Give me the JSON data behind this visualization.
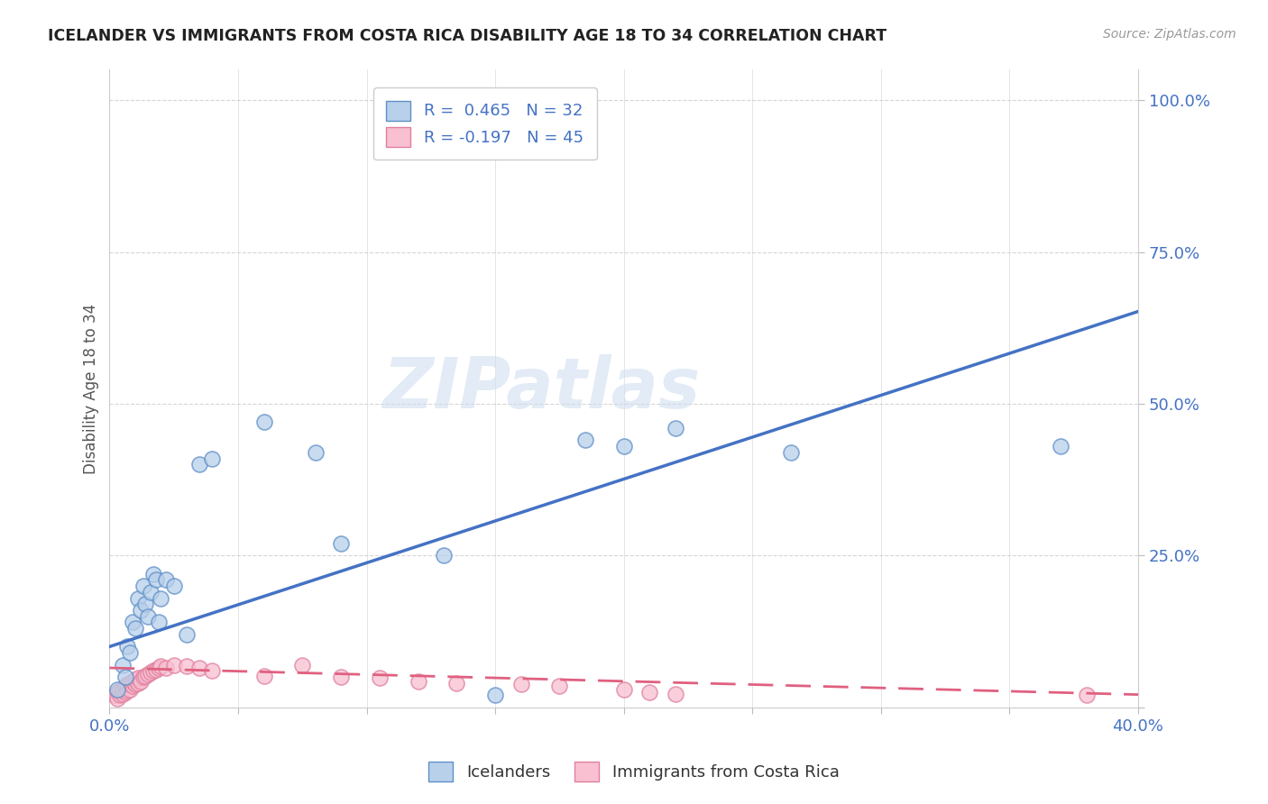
{
  "title": "ICELANDER VS IMMIGRANTS FROM COSTA RICA DISABILITY AGE 18 TO 34 CORRELATION CHART",
  "source": "Source: ZipAtlas.com",
  "ylabel": "Disability Age 18 to 34",
  "xlim": [
    0.0,
    0.4
  ],
  "ylim": [
    0.0,
    1.05
  ],
  "xticks": [
    0.0,
    0.05,
    0.1,
    0.15,
    0.2,
    0.25,
    0.3,
    0.35,
    0.4
  ],
  "xticklabels": [
    "0.0%",
    "",
    "",
    "",
    "",
    "",
    "",
    "",
    "40.0%"
  ],
  "yticks": [
    0.0,
    0.25,
    0.5,
    0.75,
    1.0
  ],
  "yticklabels": [
    "",
    "25.0%",
    "50.0%",
    "75.0%",
    "100.0%"
  ],
  "blue_R": 0.465,
  "blue_N": 32,
  "pink_R": -0.197,
  "pink_N": 45,
  "blue_color": "#b8d0ea",
  "blue_edge_color": "#6090c8",
  "blue_line_color": "#4472c4",
  "pink_color": "#f8c0d0",
  "pink_edge_color": "#e080a0",
  "pink_line_color": "#e06080",
  "watermark_color": "#d0dff0",
  "blue_scatter_x": [
    0.003,
    0.005,
    0.006,
    0.007,
    0.008,
    0.009,
    0.01,
    0.011,
    0.012,
    0.013,
    0.014,
    0.015,
    0.016,
    0.017,
    0.018,
    0.019,
    0.02,
    0.022,
    0.025,
    0.03,
    0.035,
    0.04,
    0.06,
    0.08,
    0.09,
    0.13,
    0.15,
    0.185,
    0.2,
    0.22,
    0.265,
    0.37
  ],
  "blue_scatter_y": [
    0.03,
    0.07,
    0.05,
    0.1,
    0.09,
    0.14,
    0.13,
    0.18,
    0.16,
    0.2,
    0.17,
    0.15,
    0.19,
    0.22,
    0.21,
    0.14,
    0.18,
    0.21,
    0.2,
    0.12,
    0.4,
    0.41,
    0.47,
    0.42,
    0.27,
    0.25,
    0.02,
    0.44,
    0.43,
    0.46,
    0.42,
    0.43
  ],
  "pink_scatter_x": [
    0.002,
    0.003,
    0.003,
    0.004,
    0.004,
    0.005,
    0.005,
    0.006,
    0.006,
    0.007,
    0.007,
    0.008,
    0.008,
    0.009,
    0.009,
    0.01,
    0.01,
    0.011,
    0.011,
    0.012,
    0.013,
    0.014,
    0.015,
    0.016,
    0.017,
    0.018,
    0.019,
    0.02,
    0.022,
    0.025,
    0.03,
    0.035,
    0.04,
    0.06,
    0.075,
    0.09,
    0.105,
    0.12,
    0.135,
    0.16,
    0.175,
    0.2,
    0.21,
    0.22,
    0.38
  ],
  "pink_scatter_y": [
    0.02,
    0.025,
    0.015,
    0.02,
    0.028,
    0.022,
    0.03,
    0.025,
    0.035,
    0.028,
    0.038,
    0.03,
    0.04,
    0.035,
    0.042,
    0.038,
    0.045,
    0.04,
    0.048,
    0.042,
    0.05,
    0.052,
    0.055,
    0.058,
    0.06,
    0.062,
    0.065,
    0.068,
    0.065,
    0.07,
    0.068,
    0.065,
    0.06,
    0.052,
    0.07,
    0.05,
    0.048,
    0.042,
    0.04,
    0.038,
    0.035,
    0.03,
    0.025,
    0.022,
    0.02
  ]
}
